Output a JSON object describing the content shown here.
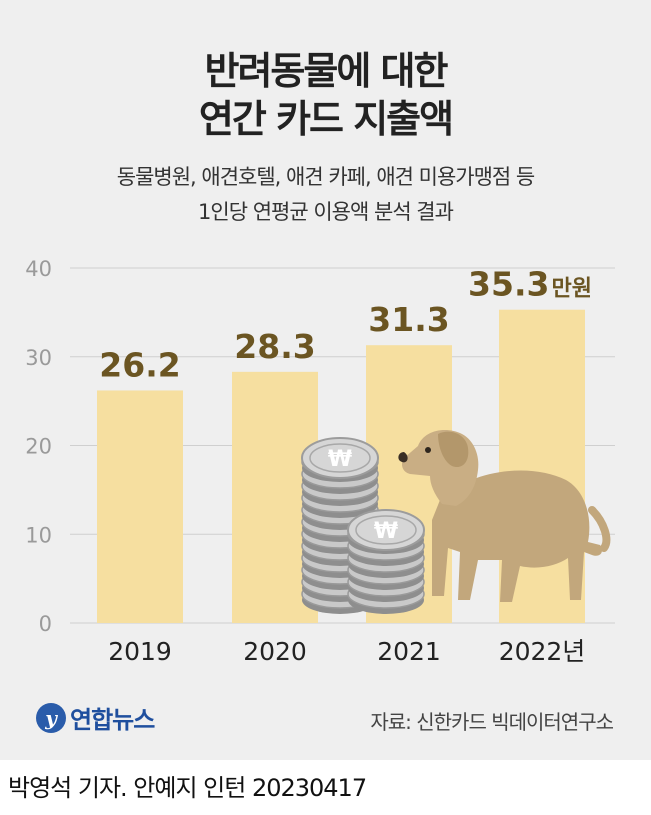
{
  "header": {
    "title_line1": "반려동물에 대한",
    "title_line2": "연간 카드 지출액",
    "subtitle_line1": "동물병원, 애견호텔, 애견 카페, 애견 미용가맹점 등",
    "subtitle_line2": "1인당 연평균 이용액 분석 결과"
  },
  "chart_data": {
    "type": "bar",
    "title": "반려동물에 대한 연간 카드 지출액",
    "categories": [
      "2019",
      "2020",
      "2021",
      "2022년"
    ],
    "values": [
      26.2,
      28.3,
      31.3,
      35.3
    ],
    "value_labels": [
      "26.2",
      "28.3",
      "31.3",
      "35.3"
    ],
    "unit": "만원",
    "ylim": [
      0,
      40
    ],
    "yticks": [
      "0",
      "10",
      "20",
      "30",
      "40"
    ],
    "grid": true,
    "colors": {
      "bar": "#f6dfa0",
      "value_label": "#6b5522",
      "grid": "#cfcfcf",
      "axis_text": "#9a9a9a"
    }
  },
  "footer": {
    "logo_text": "연합뉴스",
    "source": "자료: 신한카드 빅데이터연구소",
    "credit": "박영석 기자. 안예지 인턴 20230417"
  }
}
